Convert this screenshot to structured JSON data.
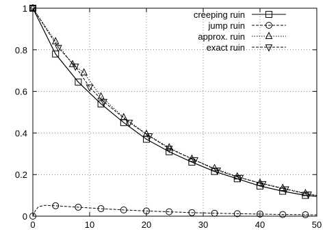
{
  "chart_data": {
    "type": "line",
    "title": "",
    "xlabel": "",
    "ylabel": "",
    "xlim": [
      0,
      50
    ],
    "ylim": [
      0,
      1
    ],
    "x_ticks": [
      0,
      10,
      20,
      30,
      40,
      50
    ],
    "y_ticks": [
      0,
      0.2,
      0.4,
      0.6,
      0.8,
      1
    ],
    "x_tick_labels": [
      "0",
      "10",
      "20",
      "30",
      "40",
      "50"
    ],
    "y_tick_labels": [
      "0",
      "0.2",
      "0.4",
      "0.6",
      "0.8",
      "1"
    ],
    "grid": true,
    "legend_position": "top-right",
    "series": [
      {
        "name": "creeping ruin",
        "marker": "square",
        "line_style": "solid",
        "x": [
          0,
          4,
          8,
          12,
          16,
          20,
          24,
          28,
          32,
          36,
          40,
          44,
          48,
          50
        ],
        "y": [
          1.0,
          0.78,
          0.645,
          0.54,
          0.45,
          0.37,
          0.31,
          0.26,
          0.215,
          0.18,
          0.145,
          0.12,
          0.1,
          0.095
        ],
        "marker_x": [
          0,
          4,
          8,
          12,
          16,
          20,
          24,
          28,
          32,
          36,
          40,
          44,
          48
        ]
      },
      {
        "name": "jump ruin",
        "marker": "circle",
        "line_style": "dashed",
        "x": [
          0,
          0.5,
          1,
          2,
          4,
          8,
          12,
          16,
          20,
          24,
          28,
          32,
          36,
          40,
          44,
          48,
          50
        ],
        "y": [
          0.0,
          0.03,
          0.045,
          0.052,
          0.05,
          0.043,
          0.036,
          0.03,
          0.025,
          0.021,
          0.017,
          0.014,
          0.012,
          0.01,
          0.008,
          0.007,
          0.006
        ],
        "marker_x": [
          0,
          4,
          8,
          12,
          16,
          20,
          24,
          28,
          32,
          36,
          40,
          44,
          48
        ]
      },
      {
        "name": "approx. ruin",
        "marker": "triangle-up",
        "line_style": "dotted",
        "x": [
          0,
          4,
          7,
          9,
          12,
          16,
          20,
          24,
          28,
          32,
          36,
          40,
          44,
          48,
          50
        ],
        "y": [
          1.0,
          0.84,
          0.73,
          0.69,
          0.575,
          0.475,
          0.395,
          0.33,
          0.275,
          0.23,
          0.19,
          0.16,
          0.135,
          0.11,
          0.1
        ],
        "marker_x": [
          0,
          4,
          7,
          9,
          12,
          16,
          20,
          24,
          28,
          32,
          36,
          40,
          44,
          48
        ]
      },
      {
        "name": "exact ruin",
        "marker": "triangle-down",
        "line_style": "dashed",
        "x": [
          0,
          4.5,
          7.5,
          10,
          12.5,
          17,
          20.5,
          24,
          28.5,
          32.5,
          36.5,
          40.5,
          44.5,
          48.5,
          50
        ],
        "y": [
          1.0,
          0.81,
          0.72,
          0.62,
          0.55,
          0.45,
          0.385,
          0.325,
          0.27,
          0.22,
          0.185,
          0.155,
          0.13,
          0.105,
          0.1
        ],
        "marker_x": [
          0,
          4.5,
          7.5,
          10,
          12.5,
          17,
          20.5,
          24,
          28.5,
          32.5,
          36.5,
          40.5,
          44.5,
          48.5
        ]
      }
    ]
  }
}
